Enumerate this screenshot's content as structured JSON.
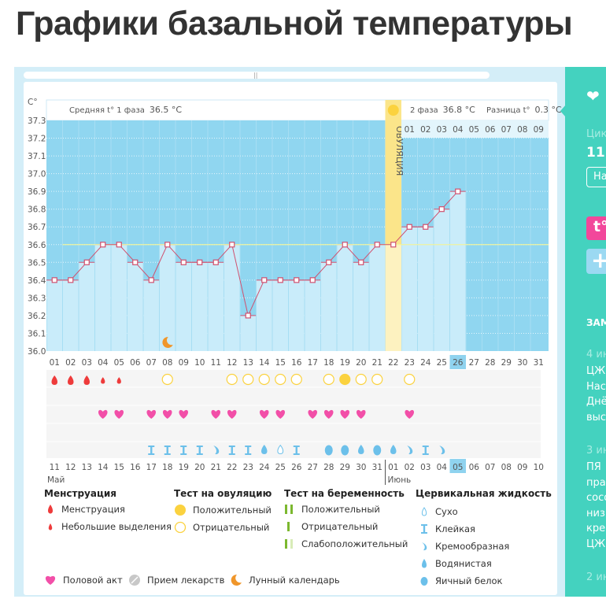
{
  "page_title": "Графики базальной температуры",
  "chart_data": {
    "type": "line",
    "ylabel": "C°",
    "ylim": [
      36.0,
      37.3
    ],
    "yticks": [
      "37.3",
      "37.2",
      "37.1",
      "37.0",
      "36.9",
      "36.8",
      "36.7",
      "36.6",
      "36.5",
      "36.4",
      "36.3",
      "36.2",
      "36.1",
      "36.0"
    ],
    "phase1_label": "Средняя t° 1 фаза",
    "phase1_value": "36.5 °C",
    "phase2_label": "2 фаза",
    "phase2_value": "36.8 °C",
    "diff_label": "Разница t°",
    "diff_value": "0.3 °C",
    "ovulation_label": "ОВУЛЯЦИЯ",
    "ovulation_day": 22,
    "coverline": 36.6,
    "phase2_days": [
      "01",
      "02",
      "03",
      "04",
      "05",
      "06",
      "07",
      "08",
      "09"
    ],
    "cycle_days": [
      "01",
      "02",
      "03",
      "04",
      "05",
      "06",
      "07",
      "08",
      "09",
      "10",
      "11",
      "12",
      "13",
      "14",
      "15",
      "16",
      "17",
      "18",
      "19",
      "20",
      "21",
      "22",
      "23",
      "24",
      "25",
      "26",
      "27",
      "28",
      "29",
      "30",
      "31"
    ],
    "current_day": 26,
    "temperatures": [
      36.4,
      36.4,
      36.5,
      36.6,
      36.6,
      36.5,
      36.4,
      36.6,
      36.5,
      36.5,
      36.5,
      36.6,
      36.2,
      36.4,
      36.4,
      36.4,
      36.4,
      36.5,
      36.6,
      36.5,
      36.6,
      36.6,
      36.7,
      36.7,
      36.8,
      36.9
    ],
    "moon_days": [
      8
    ],
    "menstruation": {
      "1": "heavy",
      "2": "heavy",
      "3": "heavy",
      "4": "light",
      "5": "light"
    },
    "ovulation_test": {
      "8": "neg",
      "12": "neg",
      "13": "neg",
      "14": "neg",
      "15": "neg",
      "16": "neg",
      "18": "neg",
      "19": "pos",
      "20": "neg",
      "21": "neg",
      "23": "neg"
    },
    "intercourse_days": [
      4,
      5,
      7,
      8,
      9,
      11,
      12,
      14,
      15,
      17,
      18,
      19,
      20,
      23
    ],
    "cervical": {
      "7": "sticky",
      "8": "sticky",
      "9": "sticky",
      "10": "sticky",
      "11": "creamy",
      "12": "sticky",
      "13": "sticky",
      "14": "watery",
      "15": "dry",
      "16": "sticky",
      "18": "egg",
      "19": "egg",
      "20": "watery",
      "21": "egg",
      "22": "watery",
      "23": "creamy",
      "24": "sticky",
      "25": "creamy"
    },
    "dates": [
      "11",
      "12",
      "13",
      "14",
      "15",
      "16",
      "17",
      "18",
      "19",
      "20",
      "21",
      "22",
      "23",
      "24",
      "25",
      "26",
      "27",
      "28",
      "29",
      "30",
      "31",
      "01",
      "02",
      "03",
      "04",
      "05",
      "06",
      "07",
      "08",
      "09",
      "10"
    ],
    "weekend_dates_index": [
      6,
      7,
      13,
      14,
      20,
      21,
      27,
      28
    ],
    "today_date_index": 26,
    "month1": "Май",
    "month2": "Июнь"
  },
  "legend": {
    "menstruation": {
      "title": "Менструация",
      "items": [
        "Менструация",
        "Небольшие выделения"
      ]
    },
    "ovulation_test": {
      "title": "Тест на овуляцию",
      "items": [
        "Положительный",
        "Отрицательный"
      ]
    },
    "pregnancy_test": {
      "title": "Тест на беременность",
      "items": [
        "Положительный",
        "Отрицательный",
        "Слабоположительный"
      ]
    },
    "cervical": {
      "title": "Цервикальная жидкость",
      "items": [
        "Сухо",
        "Клейкая",
        "Кремообразная",
        "Водянистая",
        "Яичный белок"
      ]
    },
    "other": [
      "Половой акт",
      "Прием лекарств",
      "Лунный календарь"
    ]
  },
  "sidebar": {
    "cycle_label": "Цик",
    "cycle_value": "11",
    "button": "На",
    "t_button": "t°",
    "plus": "+",
    "notes_title": "ЗАМ",
    "note1_date": "4 ин",
    "note1_lines": [
      "ЦЖ",
      "Нас",
      "Днё",
      "выс"
    ],
    "note2_date": "3 ин",
    "note2_lines": [
      "ПЯ",
      "пра",
      "сосо",
      "низ",
      "крег",
      "ЦЖ"
    ],
    "note3_date": "2 ин"
  },
  "colors": {
    "sky": "#90d6f0",
    "bar": "#c9ecfa",
    "line": "#d0506e",
    "ovulation": "#fbe58a",
    "menstruation": "#ee3b3b",
    "heart": "#f24fa8",
    "fluid": "#6cc0ea",
    "accent": "#44d2bf"
  }
}
